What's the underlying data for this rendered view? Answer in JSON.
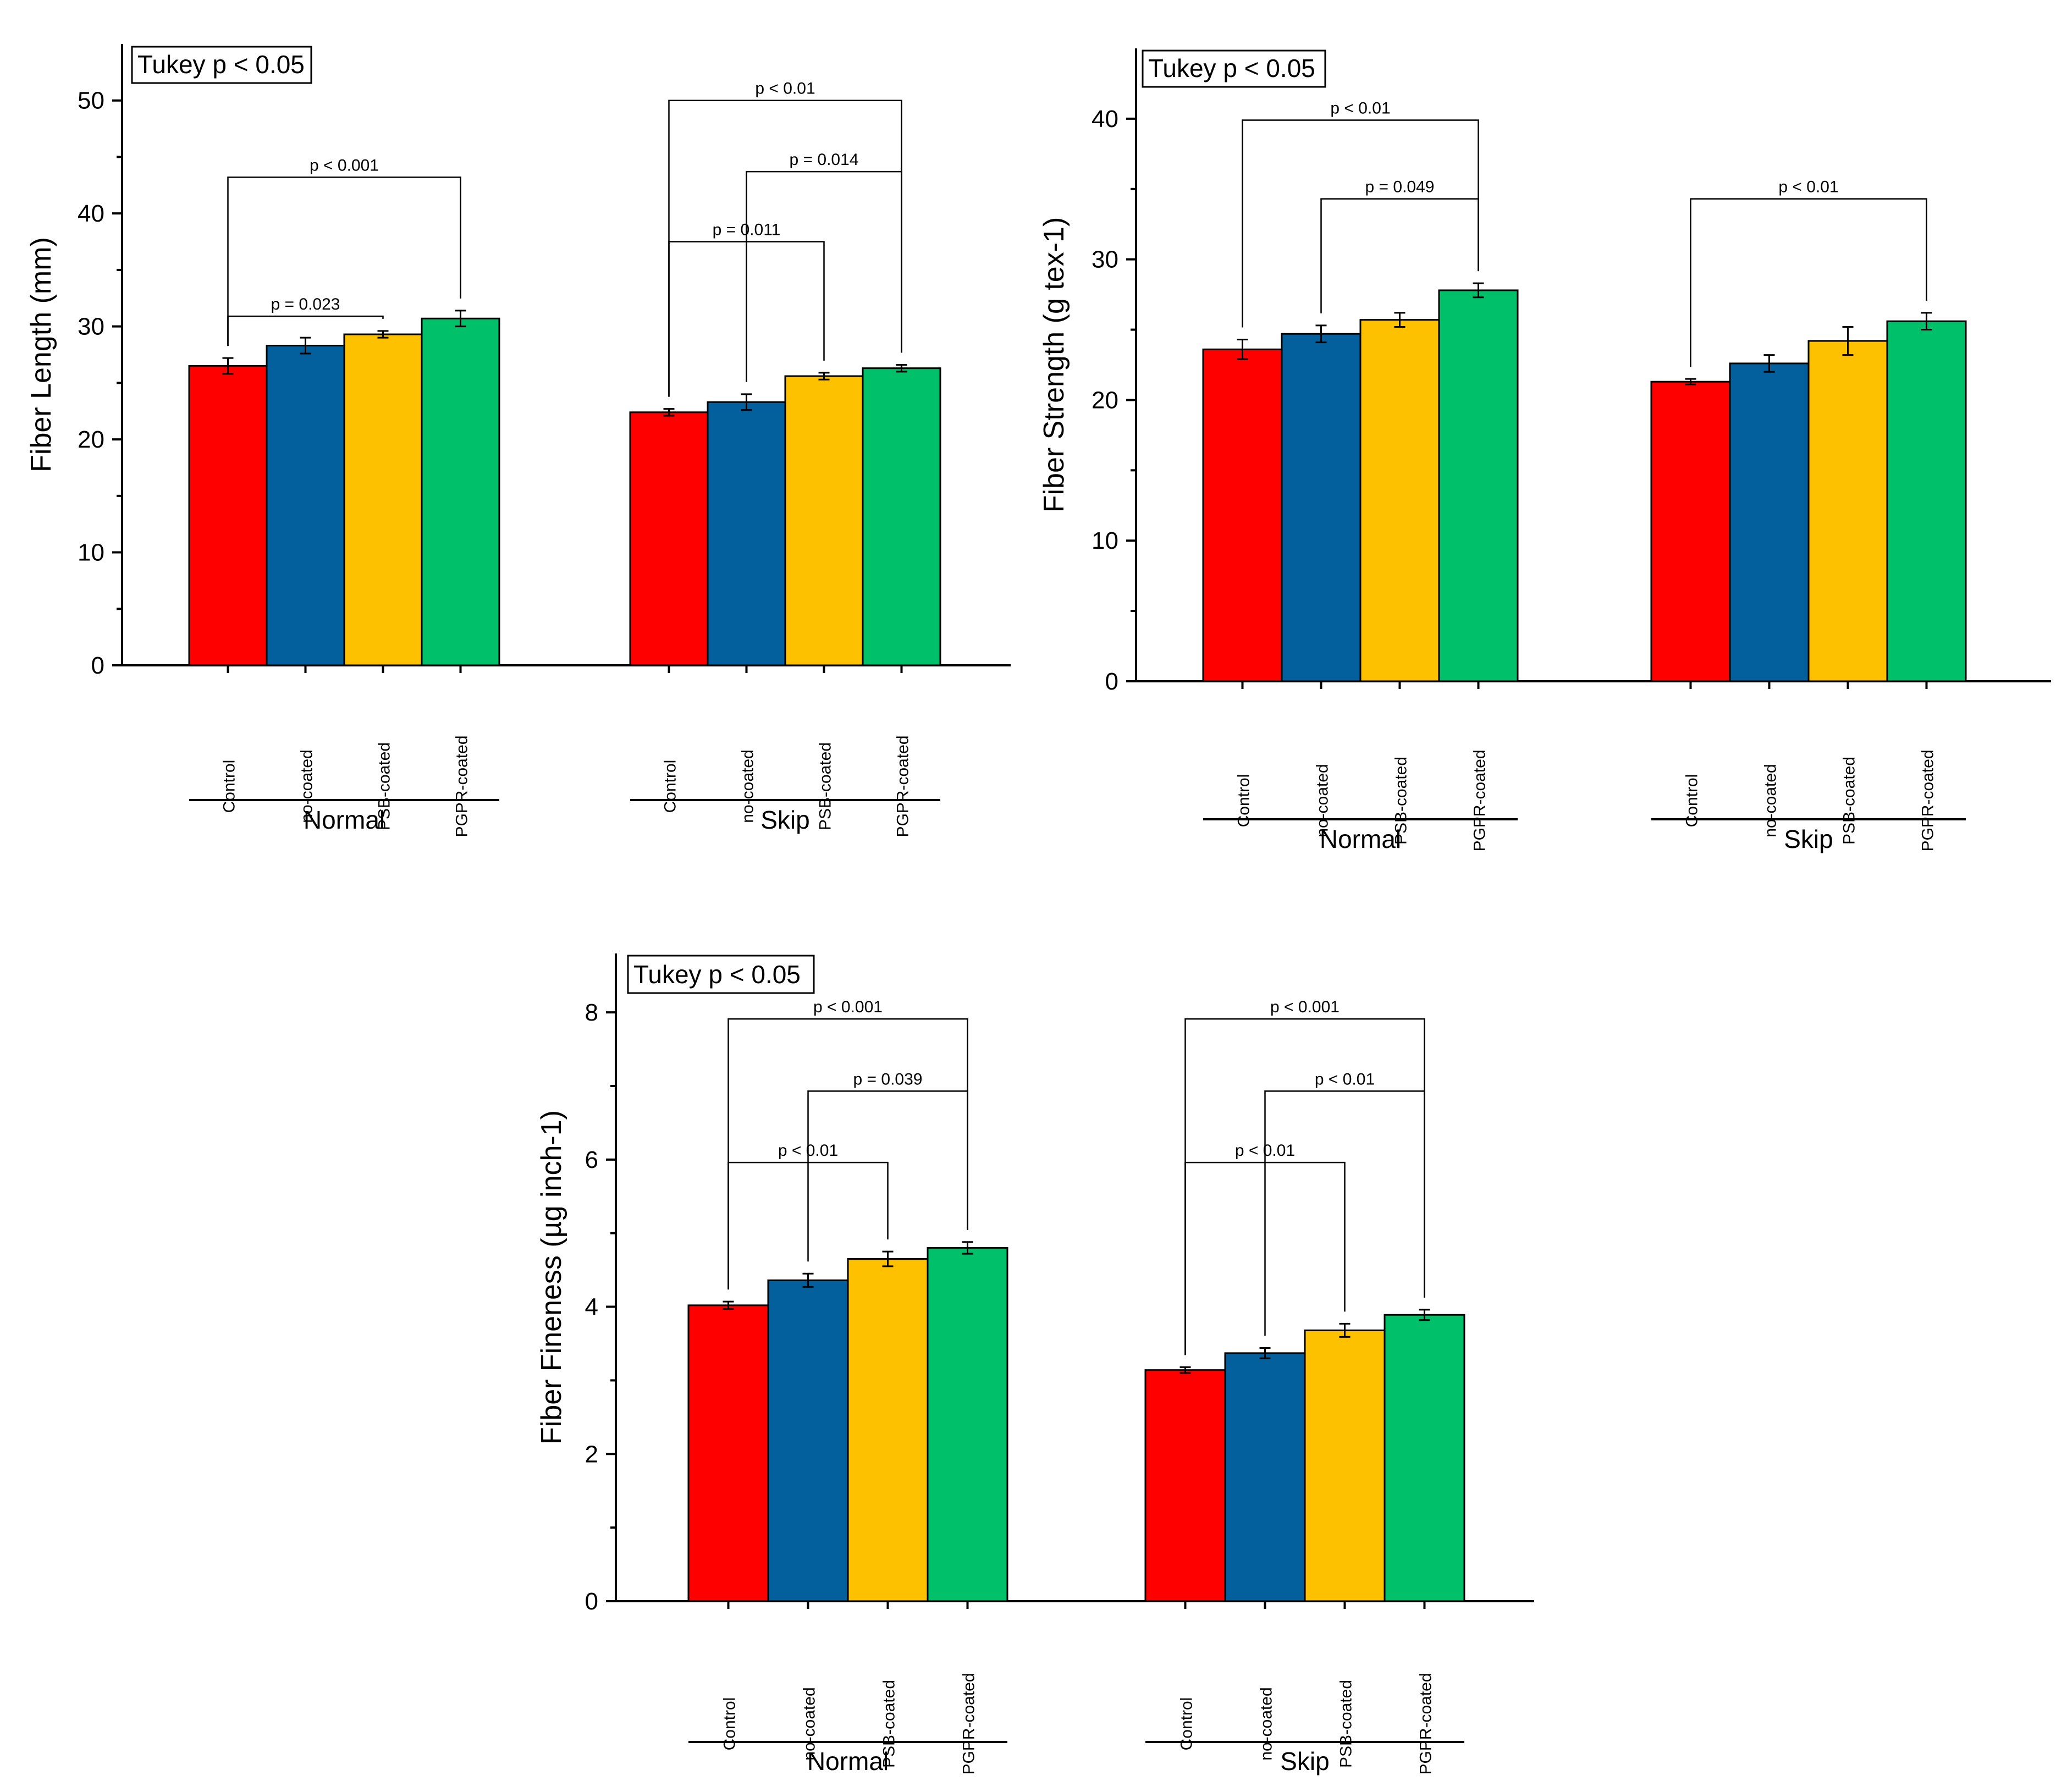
{
  "chart_data": [
    {
      "id": "fiber-length",
      "type": "bar",
      "ylabel": "Fiber Length (mm)",
      "ylim": [
        0,
        55
      ],
      "yticks": [
        0,
        10,
        20,
        30,
        40,
        50
      ],
      "annotation": "Tukey p < 0.05",
      "groups": [
        "Normal",
        "Skip"
      ],
      "categories": [
        "Control",
        "no-coated",
        "PSB-coated",
        "PGPR-coated"
      ],
      "series": [
        {
          "group": "Normal",
          "values": [
            26.5,
            28.3,
            29.3,
            30.7
          ],
          "errors": [
            0.7,
            0.7,
            0.3,
            0.7
          ]
        },
        {
          "group": "Skip",
          "values": [
            22.4,
            23.3,
            25.6,
            26.3
          ],
          "errors": [
            0.3,
            0.7,
            0.3,
            0.3
          ]
        }
      ],
      "comparisons": [
        {
          "group": "Normal",
          "from": 0,
          "to": 2,
          "label": "p = 0.023",
          "level": 30.9
        },
        {
          "group": "Normal",
          "from": 0,
          "to": 3,
          "label": "p < 0.001",
          "level": 43.2
        },
        {
          "group": "Skip",
          "from": 0,
          "to": 2,
          "label": "p = 0.011",
          "level": 37.5
        },
        {
          "group": "Skip",
          "from": 1,
          "to": 3,
          "label": "p = 0.014",
          "level": 43.7
        },
        {
          "group": "Skip",
          "from": 0,
          "to": 3,
          "label": "p < 0.01",
          "level": 50.0
        }
      ]
    },
    {
      "id": "fiber-strength",
      "type": "bar",
      "ylabel": "Fiber Strength (g tex-1)",
      "ylim": [
        0,
        45
      ],
      "yticks": [
        0,
        10,
        20,
        30,
        40
      ],
      "annotation": "Tukey p < 0.05",
      "groups": [
        "Normal",
        "Skip"
      ],
      "categories": [
        "Control",
        "no-coated",
        "PSB-coated",
        "PGPR-coated"
      ],
      "series": [
        {
          "group": "Normal",
          "values": [
            23.6,
            24.7,
            25.7,
            27.8
          ],
          "errors": [
            0.7,
            0.6,
            0.5,
            0.5
          ]
        },
        {
          "group": "Skip",
          "values": [
            21.3,
            22.6,
            24.2,
            25.6
          ],
          "errors": [
            0.2,
            0.6,
            1.0,
            0.6
          ]
        }
      ],
      "comparisons": [
        {
          "group": "Normal",
          "from": 1,
          "to": 3,
          "label": "p = 0.049",
          "level": 34.3
        },
        {
          "group": "Normal",
          "from": 0,
          "to": 3,
          "label": "p < 0.01",
          "level": 39.9
        },
        {
          "group": "Skip",
          "from": 0,
          "to": 3,
          "label": "p < 0.01",
          "level": 34.3
        }
      ]
    },
    {
      "id": "fiber-fineness",
      "type": "bar",
      "ylabel": "Fiber Fineness (µg inch-1)",
      "ylim": [
        0,
        8.8
      ],
      "yticks": [
        0,
        2,
        4,
        6,
        8
      ],
      "annotation": "Tukey p < 0.05",
      "groups": [
        "Normal",
        "Skip"
      ],
      "categories": [
        "Control",
        "no-coated",
        "PSB-coated",
        "PGPR-coated"
      ],
      "series": [
        {
          "group": "Normal",
          "values": [
            4.02,
            4.36,
            4.65,
            4.8
          ],
          "errors": [
            0.05,
            0.09,
            0.1,
            0.08
          ]
        },
        {
          "group": "Skip",
          "values": [
            3.14,
            3.37,
            3.68,
            3.89
          ],
          "errors": [
            0.04,
            0.07,
            0.09,
            0.07
          ]
        }
      ],
      "comparisons": [
        {
          "group": "Normal",
          "from": 0,
          "to": 2,
          "label": "p < 0.01",
          "level": 5.96
        },
        {
          "group": "Normal",
          "from": 1,
          "to": 3,
          "label": "p = 0.039",
          "level": 6.93
        },
        {
          "group": "Normal",
          "from": 0,
          "to": 3,
          "label": "p < 0.001",
          "level": 7.91
        },
        {
          "group": "Skip",
          "from": 0,
          "to": 2,
          "label": "p < 0.01",
          "level": 5.96
        },
        {
          "group": "Skip",
          "from": 1,
          "to": 3,
          "label": "p < 0.01",
          "level": 6.93
        },
        {
          "group": "Skip",
          "from": 0,
          "to": 3,
          "label": "p < 0.001",
          "level": 7.91
        }
      ]
    }
  ],
  "colors": {
    "Control": "#fe0000",
    "no-coated": "#03609c",
    "PSB-coated": "#fec100",
    "PGPR-coated": "#00c06a"
  }
}
